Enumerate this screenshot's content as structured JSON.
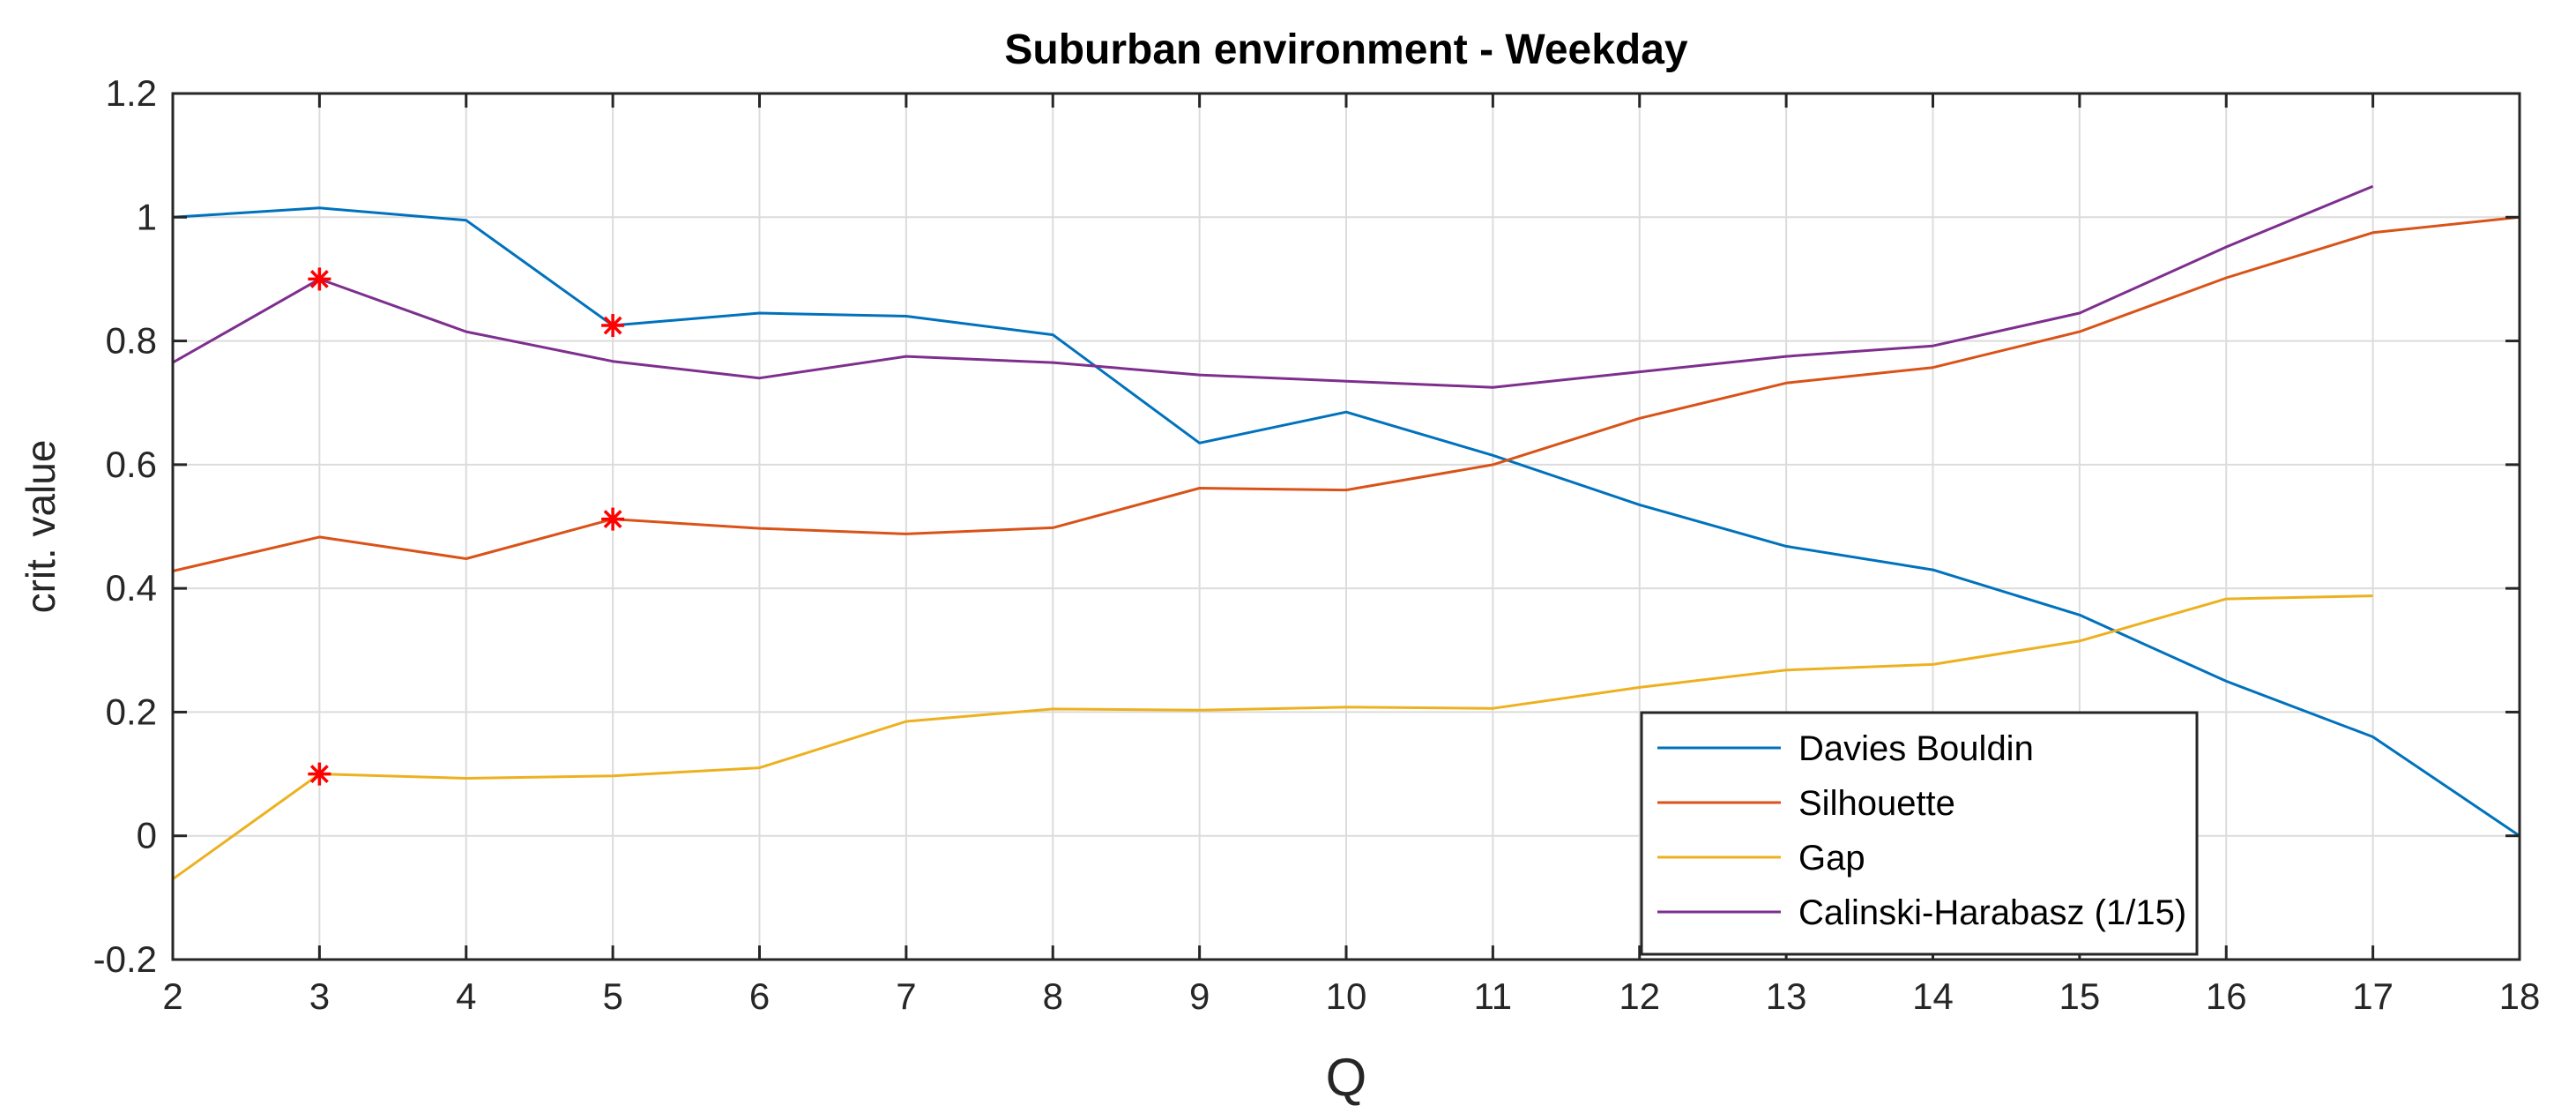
{
  "chart_data": {
    "type": "line",
    "title": "Suburban environment - Weekday",
    "xlabel": "Q",
    "ylabel": "crit. value",
    "xlim": [
      2,
      18
    ],
    "ylim": [
      -0.2,
      1.2
    ],
    "x_ticks": [
      2,
      3,
      4,
      5,
      6,
      7,
      8,
      9,
      10,
      11,
      12,
      13,
      14,
      15,
      16,
      17,
      18
    ],
    "y_ticks": [
      -0.2,
      0,
      0.2,
      0.4,
      0.6,
      0.8,
      1,
      1.2
    ],
    "y_tick_labels": [
      "-0.2",
      "0",
      "0.2",
      "0.4",
      "0.6",
      "0.8",
      "1",
      "1.2"
    ],
    "grid": true,
    "legend_position": "bottom-right",
    "series": [
      {
        "name": "Davies Bouldin",
        "color": "#0072BD",
        "x": [
          2,
          3,
          4,
          5,
          6,
          7,
          8,
          9,
          10,
          11,
          12,
          13,
          14,
          15,
          16,
          17,
          18
        ],
        "values": [
          1.0,
          1.015,
          0.995,
          0.825,
          0.845,
          0.84,
          0.81,
          0.635,
          0.685,
          0.615,
          0.535,
          0.468,
          0.43,
          0.357,
          0.25,
          0.16,
          0.0
        ]
      },
      {
        "name": "Silhouette",
        "color": "#D95319",
        "x": [
          2,
          3,
          4,
          5,
          6,
          7,
          8,
          9,
          10,
          11,
          12,
          13,
          14,
          15,
          16,
          17,
          18
        ],
        "values": [
          0.428,
          0.483,
          0.448,
          0.512,
          0.497,
          0.488,
          0.498,
          0.562,
          0.559,
          0.6,
          0.675,
          0.732,
          0.757,
          0.815,
          0.902,
          0.975,
          1.0
        ]
      },
      {
        "name": "Gap",
        "color": "#EDB120",
        "x": [
          2,
          3,
          4,
          5,
          6,
          7,
          8,
          9,
          10,
          11,
          12,
          13,
          14,
          15,
          16,
          17
        ],
        "values": [
          -0.07,
          0.1,
          0.093,
          0.097,
          0.11,
          0.185,
          0.205,
          0.203,
          0.208,
          0.206,
          0.24,
          0.268,
          0.277,
          0.315,
          0.383,
          0.388
        ]
      },
      {
        "name": "Calinski-Harabasz (1/15)",
        "color": "#7E2F8E",
        "x": [
          2,
          3,
          4,
          5,
          6,
          7,
          8,
          9,
          10,
          11,
          12,
          13,
          14,
          15,
          16,
          17
        ],
        "values": [
          0.765,
          0.9,
          0.815,
          0.767,
          0.74,
          0.775,
          0.765,
          0.745,
          0.735,
          0.725,
          0.75,
          0.775,
          0.792,
          0.845,
          0.952,
          1.05
        ]
      }
    ],
    "optimal_markers": {
      "color": "#FF0000",
      "points": [
        {
          "series": "Calinski-Harabasz (1/15)",
          "x": 3,
          "y": 0.9
        },
        {
          "series": "Davies Bouldin",
          "x": 5,
          "y": 0.825
        },
        {
          "series": "Silhouette",
          "x": 5,
          "y": 0.512
        },
        {
          "series": "Gap",
          "x": 3,
          "y": 0.1
        }
      ]
    }
  }
}
